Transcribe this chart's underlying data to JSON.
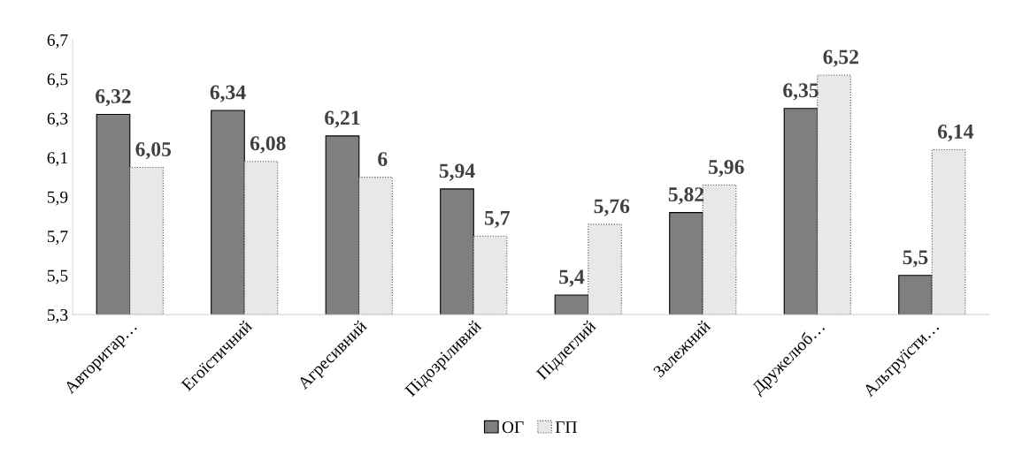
{
  "chart_data": {
    "type": "bar",
    "categories": [
      "Авторитар…",
      "Егоїстичний",
      "Агресивний",
      "Підозріливий",
      "Підлеглий",
      "Залежний",
      "Дружелюб…",
      "Альтруїсти…"
    ],
    "series": [
      {
        "name": "ОГ",
        "color": "#7f7f7f",
        "values": [
          6.32,
          6.34,
          6.21,
          5.94,
          5.4,
          5.82,
          6.35,
          5.5
        ],
        "value_labels": [
          "6,32",
          "6,34",
          "6,21",
          "5,94",
          "5,4",
          "5,82",
          "6,35",
          "5,5"
        ]
      },
      {
        "name": "ГП",
        "color": "#e8e8e8",
        "values": [
          6.05,
          6.08,
          6,
          5.7,
          5.76,
          5.96,
          6.52,
          6.14
        ],
        "value_labels": [
          "6,05",
          "6,08",
          "6",
          "5,7",
          "5,76",
          "5,96",
          "6,52",
          "6,14"
        ]
      }
    ],
    "ylim": [
      5.3,
      6.7
    ],
    "yticks": [
      {
        "value": 5.3,
        "label": "5,3"
      },
      {
        "value": 5.5,
        "label": "5,5"
      },
      {
        "value": 5.7,
        "label": "5,7"
      },
      {
        "value": 5.9,
        "label": "5,9"
      },
      {
        "value": 6.1,
        "label": "6,1"
      },
      {
        "value": 6.3,
        "label": "6,3"
      },
      {
        "value": 6.5,
        "label": "6,5"
      },
      {
        "value": 6.7,
        "label": "6,7"
      }
    ],
    "legend": "bottom",
    "grid": false
  }
}
